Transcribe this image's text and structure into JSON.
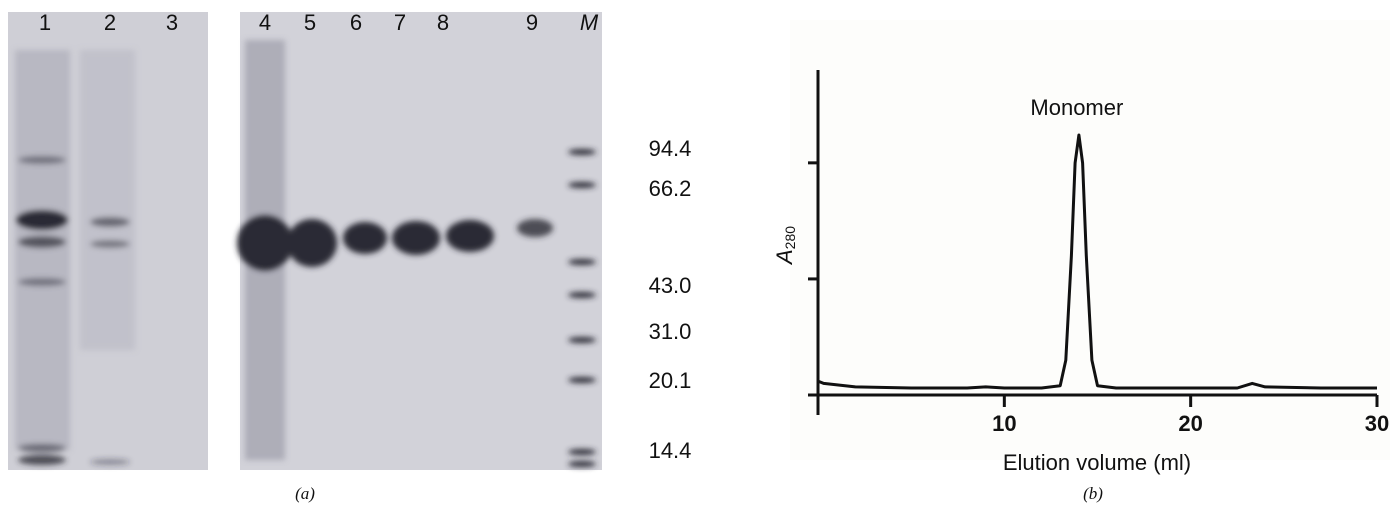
{
  "gel": {
    "lanes": [
      "1",
      "2",
      "3",
      "4",
      "5",
      "6",
      "7",
      "8",
      "9",
      "M"
    ],
    "markers": [
      "94.4",
      "66.2",
      "43.0",
      "31.0",
      "20.1",
      "14.4"
    ],
    "caption": "(a)"
  },
  "chart_data": {
    "type": "line",
    "annotation": "Monomer",
    "xlabel": "Elution volume (ml)",
    "ylabel_symbol": "A",
    "ylabel_subscript": "280",
    "caption": "(b)",
    "color": "#111111",
    "x": [
      0,
      0.3,
      2,
      5,
      8,
      9,
      10,
      12,
      13,
      13.3,
      13.6,
      13.8,
      14,
      14.2,
      14.4,
      14.7,
      15,
      16,
      20,
      22.5,
      23.3,
      24,
      27,
      30
    ],
    "values": [
      0.12,
      0.1,
      0.07,
      0.06,
      0.06,
      0.07,
      0.06,
      0.06,
      0.08,
      0.3,
      1.2,
      2.0,
      2.24,
      2.0,
      1.2,
      0.3,
      0.08,
      0.06,
      0.06,
      0.06,
      0.1,
      0.07,
      0.06,
      0.06
    ],
    "xlim": [
      0,
      30
    ],
    "xticks": [
      10,
      20,
      30
    ],
    "ylim": [
      0,
      2.8
    ],
    "yticks": [
      0,
      1,
      2
    ]
  }
}
